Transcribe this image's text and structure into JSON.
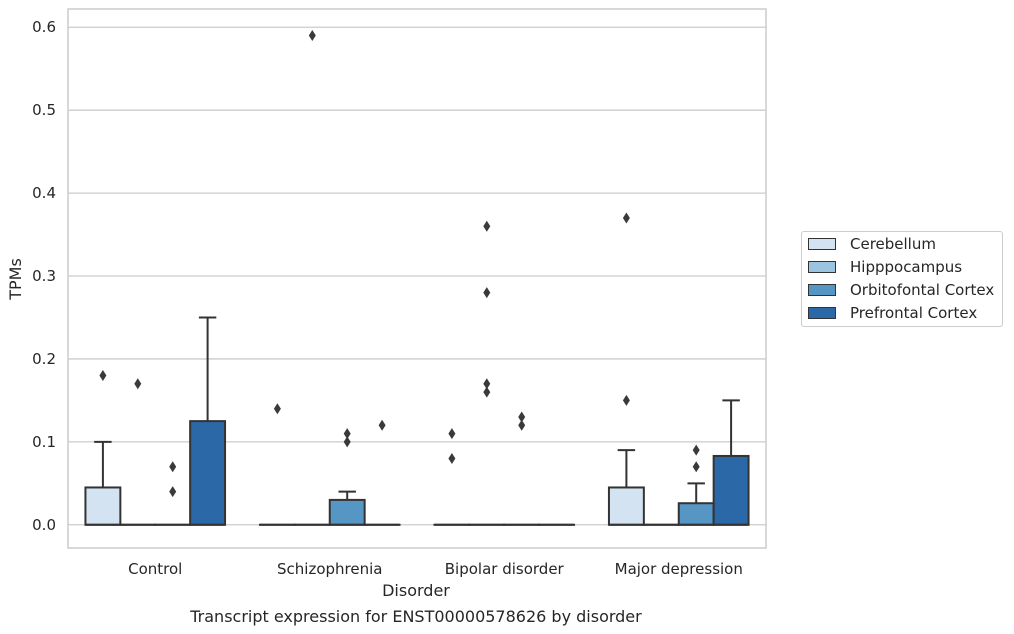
{
  "caption": "Transcript expression for ENST00000578626 by disorder",
  "chart_data": {
    "type": "box",
    "xlabel": "Disorder",
    "ylabel": "TPMs",
    "ylim": [
      -0.028,
      0.622
    ],
    "yticks": [
      0.0,
      0.1,
      0.2,
      0.3,
      0.4,
      0.5,
      0.6
    ],
    "ytick_labels": [
      "0.0",
      "0.1",
      "0.2",
      "0.3",
      "0.4",
      "0.5",
      "0.6"
    ],
    "grid": "horizontal",
    "legend_position": "right",
    "categories": [
      "Control",
      "Schizophrenia",
      "Bipolar disorder",
      "Major depression"
    ],
    "series": [
      {
        "name": "Cerebellum",
        "color": "#d4e3f1",
        "boxes": [
          {
            "q1": 0,
            "median": 0,
            "q3": 0.045,
            "whisker_low": 0,
            "whisker_high": 0.1,
            "outliers": [
              0.18
            ]
          },
          {
            "q1": 0,
            "median": 0,
            "q3": 0,
            "whisker_low": 0,
            "whisker_high": 0,
            "outliers": [
              0.14
            ]
          },
          {
            "q1": 0,
            "median": 0,
            "q3": 0,
            "whisker_low": 0,
            "whisker_high": 0,
            "outliers": [
              0.08,
              0.11
            ]
          },
          {
            "q1": 0,
            "median": 0,
            "q3": 0.045,
            "whisker_low": 0,
            "whisker_high": 0.09,
            "outliers": [
              0.15,
              0.37
            ]
          }
        ]
      },
      {
        "name": "Hipppocampus",
        "color": "#9ac4df",
        "boxes": [
          {
            "q1": 0,
            "median": 0,
            "q3": 0,
            "whisker_low": 0,
            "whisker_high": 0,
            "outliers": [
              0.17
            ]
          },
          {
            "q1": 0,
            "median": 0,
            "q3": 0,
            "whisker_low": 0,
            "whisker_high": 0,
            "outliers": [
              0.59
            ]
          },
          {
            "q1": 0,
            "median": 0,
            "q3": 0,
            "whisker_low": 0,
            "whisker_high": 0,
            "outliers": [
              0.16,
              0.17,
              0.28,
              0.36
            ]
          },
          {
            "q1": 0,
            "median": 0,
            "q3": 0,
            "whisker_low": 0,
            "whisker_high": 0,
            "outliers": []
          }
        ]
      },
      {
        "name": "Orbitofontal Cortex",
        "color": "#5596c4",
        "boxes": [
          {
            "q1": 0,
            "median": 0,
            "q3": 0,
            "whisker_low": 0,
            "whisker_high": 0,
            "outliers": [
              0.04,
              0.07
            ]
          },
          {
            "q1": 0,
            "median": 0,
            "q3": 0.03,
            "whisker_low": 0,
            "whisker_high": 0.04,
            "outliers": [
              0.1,
              0.11
            ]
          },
          {
            "q1": 0,
            "median": 0,
            "q3": 0,
            "whisker_low": 0,
            "whisker_high": 0,
            "outliers": [
              0.12,
              0.13
            ]
          },
          {
            "q1": 0,
            "median": 0,
            "q3": 0.026,
            "whisker_low": 0,
            "whisker_high": 0.05,
            "outliers": [
              0.07,
              0.09
            ]
          }
        ]
      },
      {
        "name": "Prefrontal Cortex",
        "color": "#2a68a8",
        "boxes": [
          {
            "q1": 0,
            "median": 0,
            "q3": 0.125,
            "whisker_low": 0,
            "whisker_high": 0.25,
            "outliers": []
          },
          {
            "q1": 0,
            "median": 0,
            "q3": 0,
            "whisker_low": 0,
            "whisker_high": 0,
            "outliers": [
              0.12
            ]
          },
          {
            "q1": 0,
            "median": 0,
            "q3": 0,
            "whisker_low": 0,
            "whisker_high": 0,
            "outliers": []
          },
          {
            "q1": 0,
            "median": 0,
            "q3": 0.083,
            "whisker_low": 0,
            "whisker_high": 0.15,
            "outliers": []
          }
        ]
      }
    ]
  }
}
